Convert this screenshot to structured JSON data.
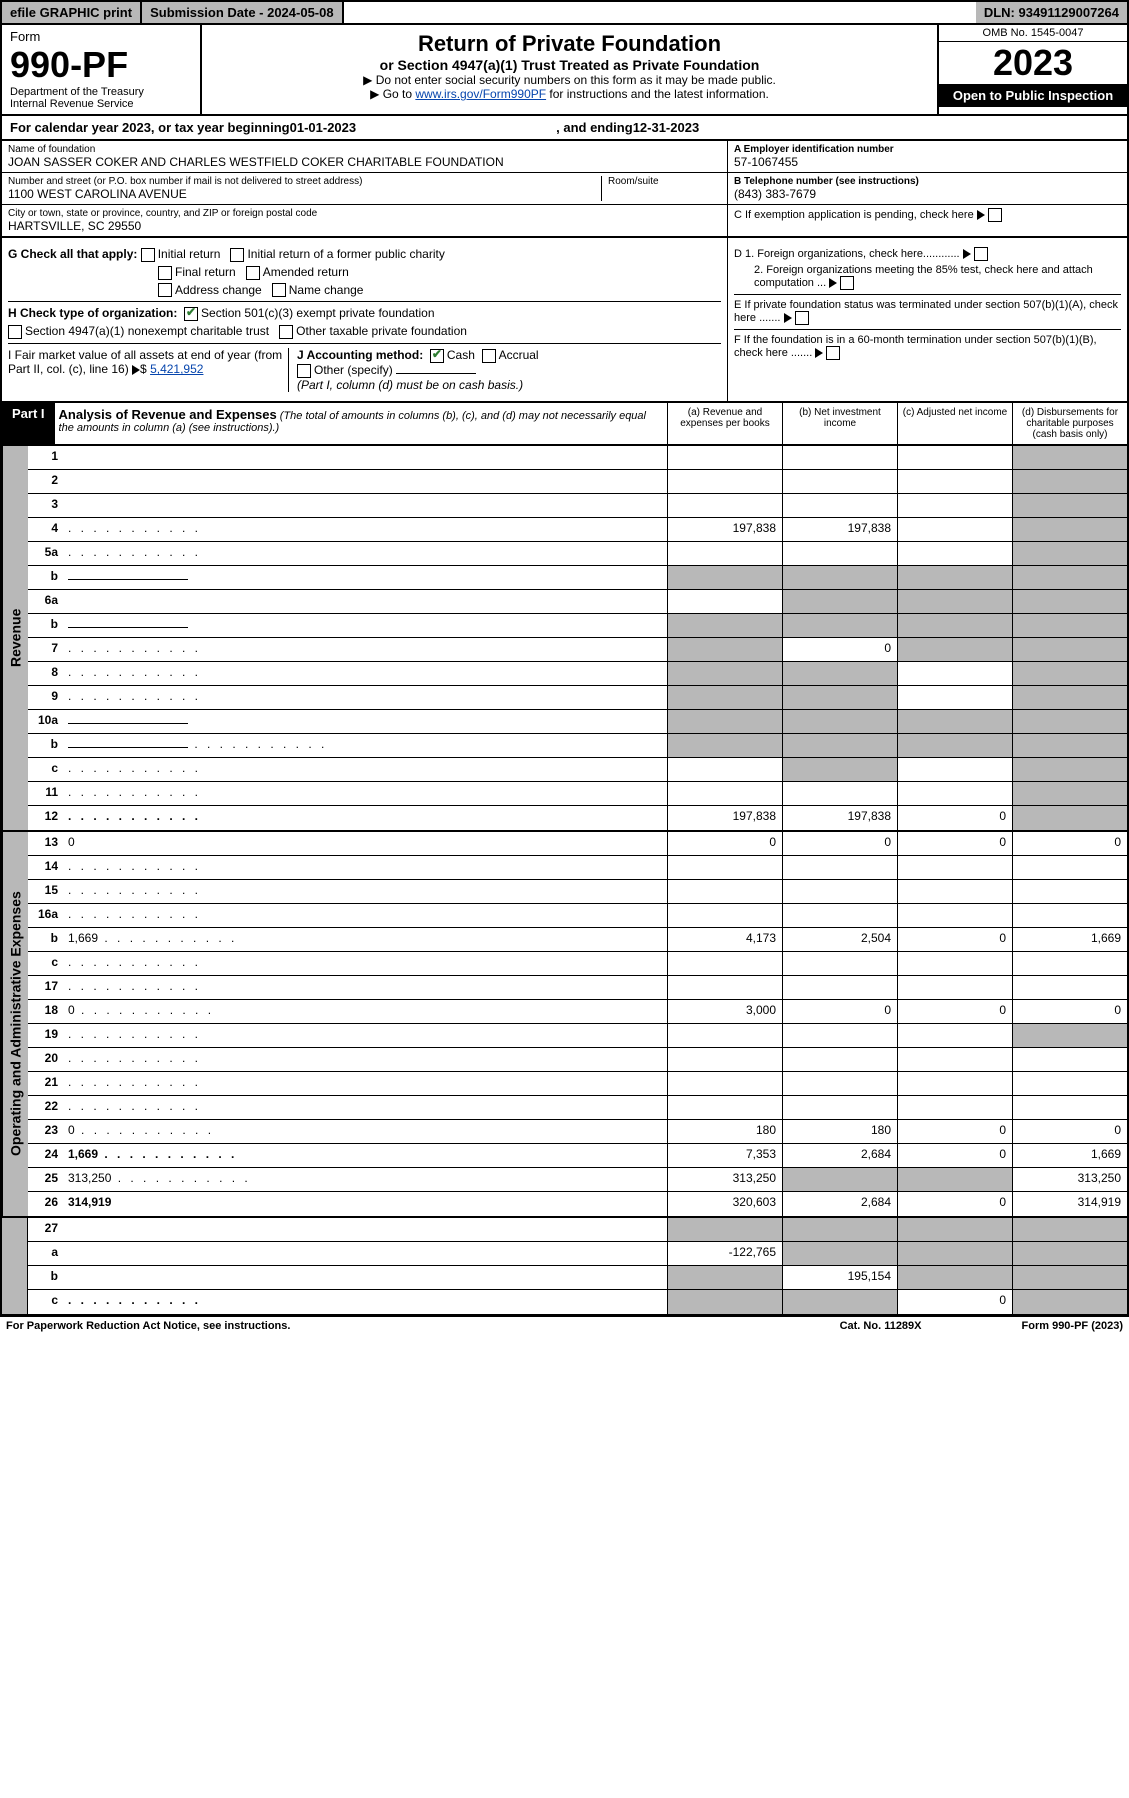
{
  "topbar": {
    "efile": "efile GRAPHIC print",
    "submission": "Submission Date - 2024-05-08",
    "dln": "DLN: 93491129007264"
  },
  "header": {
    "form_label": "Form",
    "form_number": "990-PF",
    "dept1": "Department of the Treasury",
    "dept2": "Internal Revenue Service",
    "title": "Return of Private Foundation",
    "subtitle": "or Section 4947(a)(1) Trust Treated as Private Foundation",
    "instr1": "▶ Do not enter social security numbers on this form as it may be made public.",
    "instr2_pre": "▶ Go to ",
    "instr2_link": "www.irs.gov/Form990PF",
    "instr2_post": " for instructions and the latest information.",
    "omb": "OMB No. 1545-0047",
    "year": "2023",
    "open_public": "Open to Public Inspection"
  },
  "calyear": {
    "prefix": "For calendar year 2023, or tax year beginning ",
    "begin": "01-01-2023",
    "mid": " , and ending ",
    "end": "12-31-2023"
  },
  "info": {
    "name_label": "Name of foundation",
    "name": "JOAN SASSER COKER AND CHARLES WESTFIELD COKER CHARITABLE FOUNDATION",
    "addr_label": "Number and street (or P.O. box number if mail is not delivered to street address)",
    "addr": "1100 WEST CAROLINA AVENUE",
    "room_label": "Room/suite",
    "city_label": "City or town, state or province, country, and ZIP or foreign postal code",
    "city": "HARTSVILLE, SC  29550",
    "ein_label": "A Employer identification number",
    "ein": "57-1067455",
    "phone_label": "B Telephone number (see instructions)",
    "phone": "(843) 383-7679",
    "c_label": "C If exemption application is pending, check here",
    "d1": "D 1. Foreign organizations, check here............",
    "d2": "2. Foreign organizations meeting the 85% test, check here and attach computation ...",
    "e_label": "E  If private foundation status was terminated under section 507(b)(1)(A), check here .......",
    "f_label": "F  If the foundation is in a 60-month termination under section 507(b)(1)(B), check here .......",
    "g_label": "G Check all that apply:",
    "g_opts": [
      "Initial return",
      "Initial return of a former public charity",
      "Final return",
      "Amended return",
      "Address change",
      "Name change"
    ],
    "h_label": "H Check type of organization:",
    "h1": "Section 501(c)(3) exempt private foundation",
    "h2": "Section 4947(a)(1) nonexempt charitable trust",
    "h3": "Other taxable private foundation",
    "i_label": "I Fair market value of all assets at end of year (from Part II, col. (c), line 16)",
    "i_val": "5,421,952",
    "j_label": "J Accounting method:",
    "j_cash": "Cash",
    "j_accrual": "Accrual",
    "j_other": "Other (specify)",
    "j_note": "(Part I, column (d) must be on cash basis.)"
  },
  "part1": {
    "label": "Part I",
    "title": "Analysis of Revenue and Expenses",
    "note": " (The total of amounts in columns (b), (c), and (d) may not necessarily equal the amounts in column (a) (see instructions).)",
    "col_a": "(a) Revenue and expenses per books",
    "col_b": "(b) Net investment income",
    "col_c": "(c) Adjusted net income",
    "col_d": "(d) Disbursements for charitable purposes (cash basis only)"
  },
  "sections": {
    "revenue": "Revenue",
    "expenses": "Operating and Administrative Expenses"
  },
  "rows": [
    {
      "n": "1",
      "d": "",
      "a": "",
      "b": "",
      "c": "",
      "sd": true
    },
    {
      "n": "2",
      "d": "",
      "a": "",
      "b": "",
      "c": "",
      "sd": true,
      "nb": true
    },
    {
      "n": "3",
      "d": "",
      "a": "",
      "b": "",
      "c": "",
      "sd": true
    },
    {
      "n": "4",
      "d": "",
      "a": "197,838",
      "b": "197,838",
      "c": "",
      "sd": true,
      "dots": true
    },
    {
      "n": "5a",
      "d": "",
      "a": "",
      "b": "",
      "c": "",
      "sd": true,
      "dots": true
    },
    {
      "n": "b",
      "d": "",
      "a": "",
      "b": "",
      "c": "",
      "sa": true,
      "sb": true,
      "sc": true,
      "sd": true,
      "inline": true
    },
    {
      "n": "6a",
      "d": "",
      "a": "",
      "b": "",
      "c": "",
      "sb": true,
      "sc": true,
      "sd": true
    },
    {
      "n": "b",
      "d": "",
      "a": "",
      "b": "",
      "c": "",
      "sa": true,
      "sb": true,
      "sc": true,
      "sd": true,
      "inline": true
    },
    {
      "n": "7",
      "d": "",
      "a": "",
      "b": "0",
      "c": "",
      "sa": true,
      "sc": true,
      "sd": true,
      "dots": true
    },
    {
      "n": "8",
      "d": "",
      "a": "",
      "b": "",
      "c": "",
      "sa": true,
      "sb": true,
      "sd": true,
      "dots": true
    },
    {
      "n": "9",
      "d": "",
      "a": "",
      "b": "",
      "c": "",
      "sa": true,
      "sb": true,
      "sd": true,
      "dots": true
    },
    {
      "n": "10a",
      "d": "",
      "a": "",
      "b": "",
      "c": "",
      "sa": true,
      "sb": true,
      "sc": true,
      "sd": true,
      "inline": true
    },
    {
      "n": "b",
      "d": "",
      "a": "",
      "b": "",
      "c": "",
      "sa": true,
      "sb": true,
      "sc": true,
      "sd": true,
      "inline": true,
      "dots": true
    },
    {
      "n": "c",
      "d": "",
      "a": "",
      "b": "",
      "c": "",
      "sb": true,
      "sd": true,
      "dots": true
    },
    {
      "n": "11",
      "d": "",
      "a": "",
      "b": "",
      "c": "",
      "sd": true,
      "dots": true
    },
    {
      "n": "12",
      "d": "",
      "a": "197,838",
      "b": "197,838",
      "c": "0",
      "sd": true,
      "bold": true,
      "dots": true
    }
  ],
  "exp_rows": [
    {
      "n": "13",
      "d": "0",
      "a": "0",
      "b": "0",
      "c": "0"
    },
    {
      "n": "14",
      "d": "",
      "a": "",
      "b": "",
      "c": "",
      "dots": true
    },
    {
      "n": "15",
      "d": "",
      "a": "",
      "b": "",
      "c": "",
      "dots": true
    },
    {
      "n": "16a",
      "d": "",
      "a": "",
      "b": "",
      "c": "",
      "dots": true
    },
    {
      "n": "b",
      "d": "1,669",
      "a": "4,173",
      "b": "2,504",
      "c": "0",
      "dots": true
    },
    {
      "n": "c",
      "d": "",
      "a": "",
      "b": "",
      "c": "",
      "dots": true
    },
    {
      "n": "17",
      "d": "",
      "a": "",
      "b": "",
      "c": "",
      "dots": true
    },
    {
      "n": "18",
      "d": "0",
      "a": "3,000",
      "b": "0",
      "c": "0",
      "dots": true
    },
    {
      "n": "19",
      "d": "",
      "a": "",
      "b": "",
      "c": "",
      "sd": true,
      "dots": true
    },
    {
      "n": "20",
      "d": "",
      "a": "",
      "b": "",
      "c": "",
      "dots": true
    },
    {
      "n": "21",
      "d": "",
      "a": "",
      "b": "",
      "c": "",
      "dots": true
    },
    {
      "n": "22",
      "d": "",
      "a": "",
      "b": "",
      "c": "",
      "dots": true
    },
    {
      "n": "23",
      "d": "0",
      "a": "180",
      "b": "180",
      "c": "0",
      "dots": true
    },
    {
      "n": "24",
      "d": "1,669",
      "a": "7,353",
      "b": "2,684",
      "c": "0",
      "bold": true,
      "dots": true
    },
    {
      "n": "25",
      "d": "313,250",
      "a": "313,250",
      "b": "",
      "c": "",
      "sb": true,
      "sc": true,
      "dots": true
    },
    {
      "n": "26",
      "d": "314,919",
      "a": "320,603",
      "b": "2,684",
      "c": "0",
      "bold": true
    }
  ],
  "bottom_rows": [
    {
      "n": "27",
      "d": "",
      "a": "",
      "b": "",
      "c": "",
      "sa": true,
      "sb": true,
      "sc": true,
      "sd": true
    },
    {
      "n": "a",
      "d": "",
      "a": "-122,765",
      "b": "",
      "c": "",
      "sb": true,
      "sc": true,
      "sd": true,
      "bold": true
    },
    {
      "n": "b",
      "d": "",
      "a": "",
      "b": "195,154",
      "c": "",
      "sa": true,
      "sc": true,
      "sd": true,
      "bold": true
    },
    {
      "n": "c",
      "d": "",
      "a": "",
      "b": "",
      "c": "0",
      "sa": true,
      "sb": true,
      "sd": true,
      "bold": true,
      "dots": true
    }
  ],
  "footer": {
    "left": "For Paperwork Reduction Act Notice, see instructions.",
    "mid": "Cat. No. 11289X",
    "right": "Form 990-PF (2023)"
  },
  "colors": {
    "shaded": "#b8b8b8",
    "link": "#0645ad",
    "check": "#2e7d32"
  }
}
